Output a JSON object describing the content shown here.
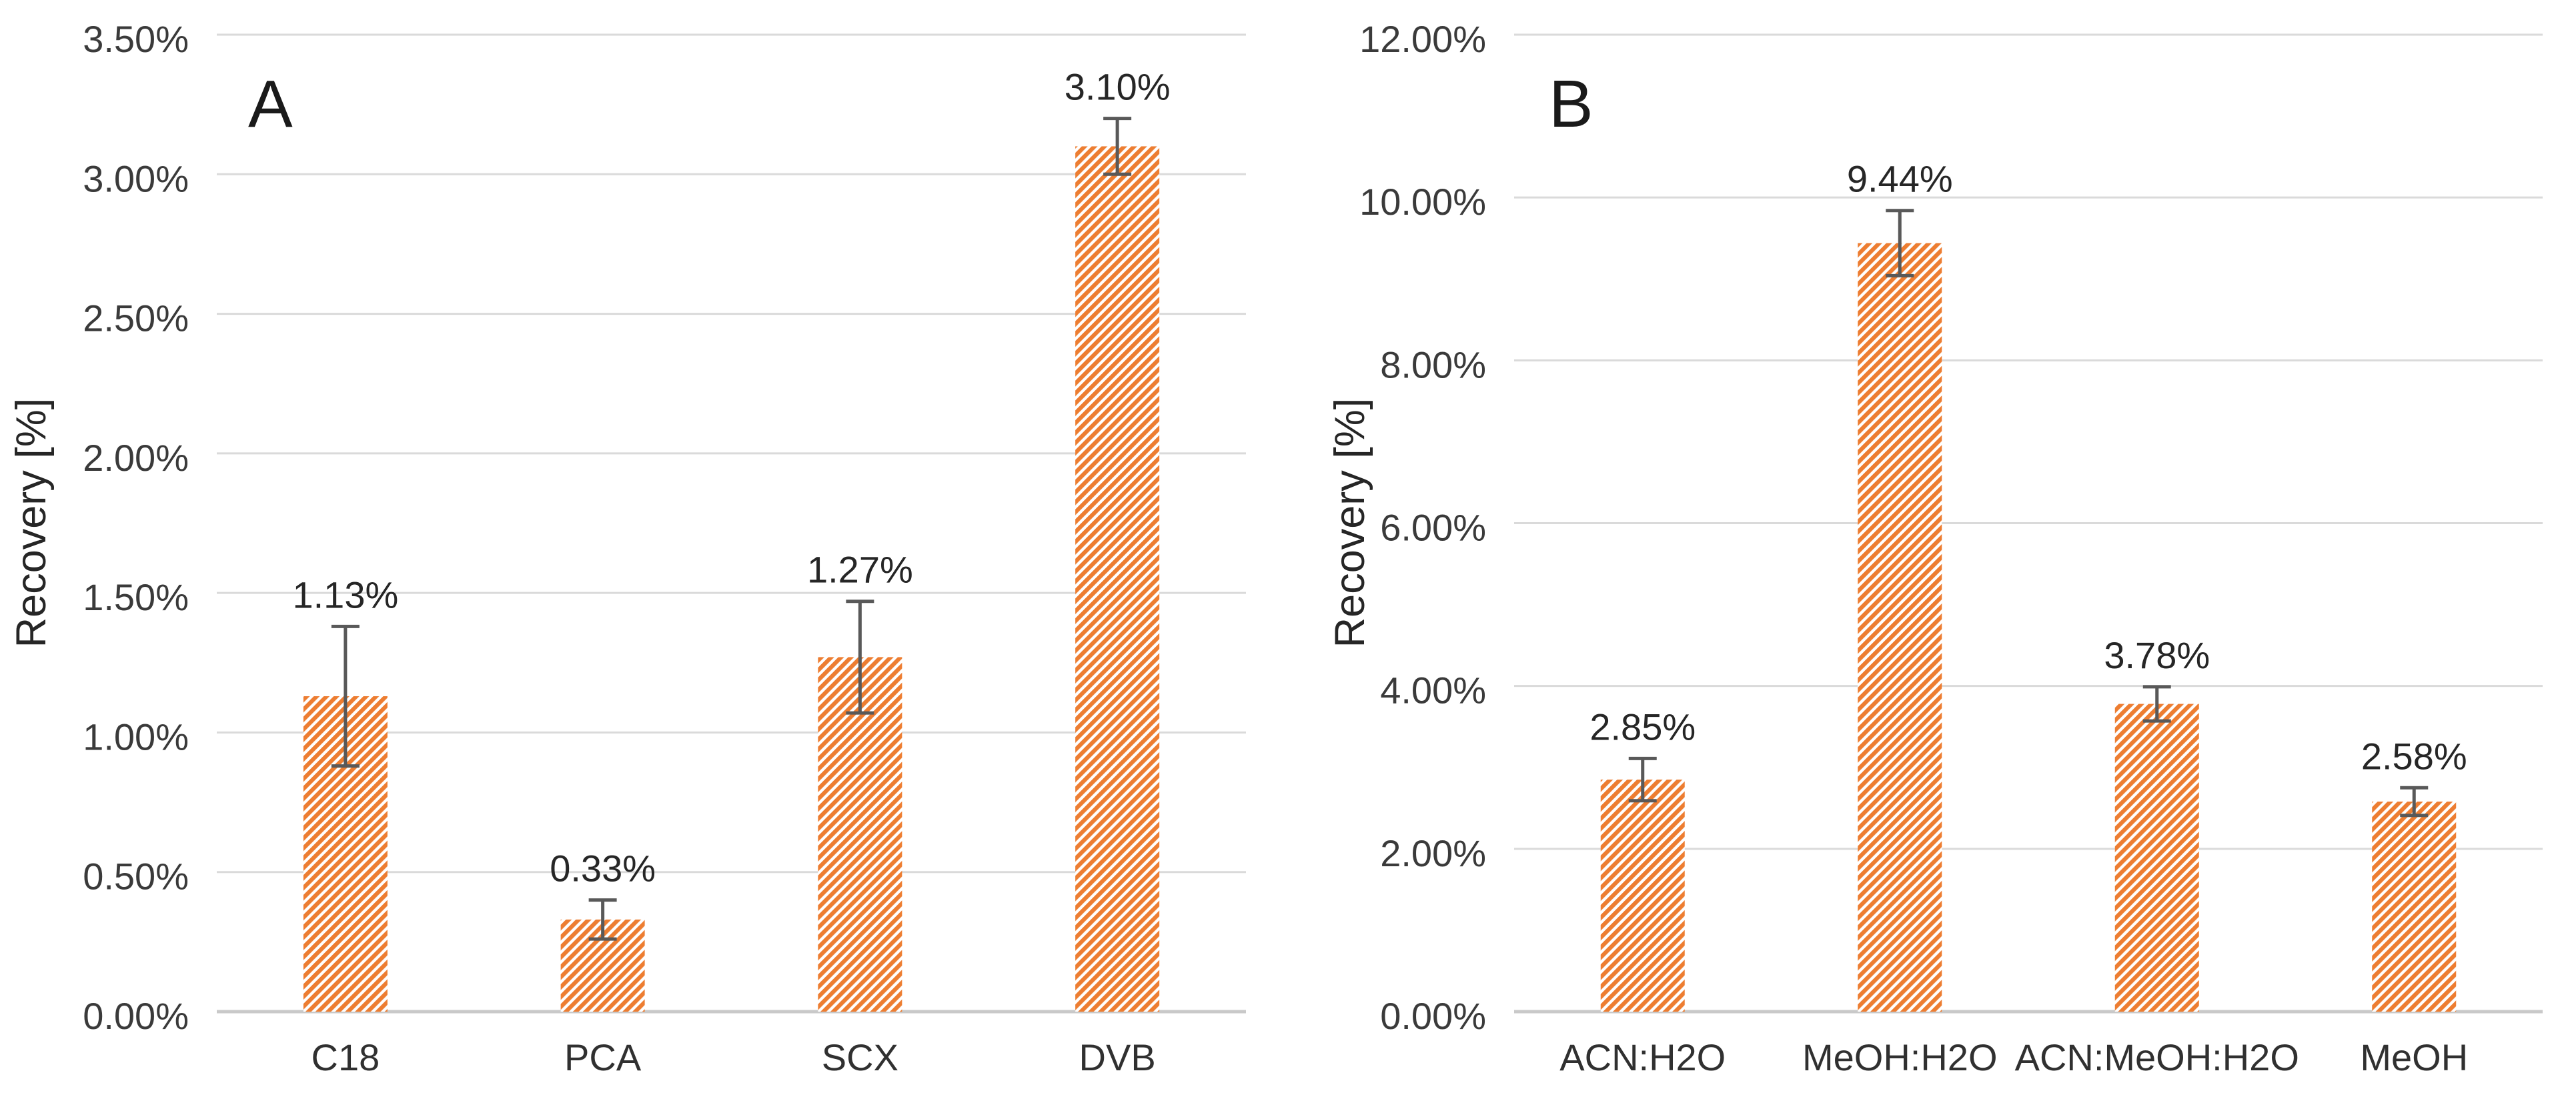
{
  "figure": {
    "background": "#ffffff",
    "y_axis_title": "Recovery [%]"
  },
  "style": {
    "bar_hatch_color": "#ED7D31",
    "hatch_background": "#ffffff",
    "error_bar_color": "#595959",
    "grid_color": "#dadada",
    "axis_line_color": "#c9c9c9",
    "text_color": "#3a3a3a"
  },
  "chart_data": [
    {
      "type": "bar",
      "panel_label": "A",
      "title": "",
      "xlabel": "",
      "ylabel": "Recovery [%]",
      "categories": [
        "C18",
        "PCA",
        "SCX",
        "DVB"
      ],
      "values": [
        1.13,
        0.33,
        1.27,
        3.1
      ],
      "value_labels": [
        "1.13%",
        "0.33%",
        "1.27%",
        "3.10%"
      ],
      "errors": [
        0.25,
        0.07,
        0.2,
        0.1
      ],
      "ylim": [
        0,
        3.5
      ],
      "ytick_step": 0.5,
      "ytick_labels": [
        "0.00%",
        "0.50%",
        "1.00%",
        "1.50%",
        "2.00%",
        "2.50%",
        "3.00%",
        "3.50%"
      ],
      "grid": true,
      "legend_position": "none",
      "bar_style": "diagonal-hatch"
    },
    {
      "type": "bar",
      "panel_label": "B",
      "title": "",
      "xlabel": "",
      "ylabel": "Recovery [%]",
      "categories": [
        "ACN:H2O",
        "MeOH:H2O",
        "ACN:MeOH:H2O",
        "MeOH"
      ],
      "values": [
        2.85,
        9.44,
        3.78,
        2.58
      ],
      "value_labels": [
        "2.85%",
        "9.44%",
        "3.78%",
        "2.58%"
      ],
      "errors": [
        0.26,
        0.4,
        0.21,
        0.17
      ],
      "ylim": [
        0,
        12
      ],
      "ytick_step": 2,
      "ytick_labels": [
        "0.00%",
        "2.00%",
        "4.00%",
        "6.00%",
        "8.00%",
        "10.00%",
        "12.00%"
      ],
      "grid": true,
      "legend_position": "none",
      "bar_style": "diagonal-hatch"
    }
  ]
}
